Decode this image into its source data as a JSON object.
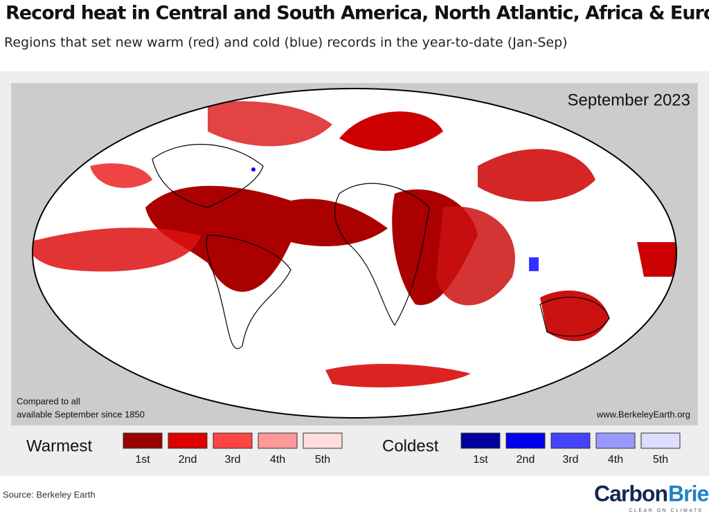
{
  "title": "Record heat in Central and South America, North Atlantic, Africa & Europe",
  "subtitle": "Regions that set new warm (red) and cold (blue) records in the year-to-date (Jan-Sep)",
  "map": {
    "date_label": "September 2023",
    "note": [
      "Compared to all",
      "available September since 1850"
    ],
    "website": "www.BerkeleyEarth.org"
  },
  "legend": {
    "warm": {
      "title": "Warmest",
      "items": [
        {
          "label": "1st",
          "color": "#990000"
        },
        {
          "label": "2nd",
          "color": "#dd0000"
        },
        {
          "label": "3rd",
          "color": "#ff4444"
        },
        {
          "label": "4th",
          "color": "#ff9999"
        },
        {
          "label": "5th",
          "color": "#ffdddd"
        }
      ]
    },
    "cold": {
      "title": "Coldest",
      "items": [
        {
          "label": "1st",
          "color": "#00009c"
        },
        {
          "label": "2nd",
          "color": "#0000ee"
        },
        {
          "label": "3rd",
          "color": "#4444ff"
        },
        {
          "label": "4th",
          "color": "#9999ff"
        },
        {
          "label": "5th",
          "color": "#ddddff"
        }
      ]
    }
  },
  "footer": {
    "source": "Source: Berkeley Earth",
    "logo": [
      "Carbon",
      "Brief"
    ],
    "tagline": "CLEAR ON CLIMATE"
  }
}
